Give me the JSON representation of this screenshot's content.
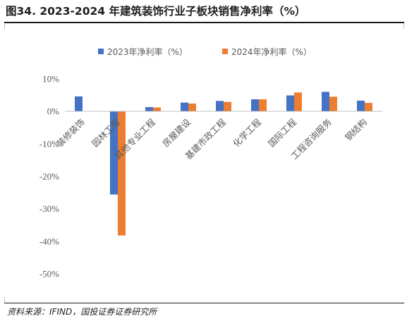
{
  "page": {
    "title": "图34. 2023-2024 年建筑装饰行业子板块销售净利率（%）",
    "source": "资料来源：IFIND，国投证券证券研究所"
  },
  "chart_data": {
    "type": "bar",
    "title": "图34. 2023-2024 年建筑装饰行业子板块销售净利率（%）",
    "categories": [
      "装修装饰",
      "园林工程",
      "其他专业工程",
      "房屋建设",
      "基建市政工程",
      "化学工程",
      "国际工程",
      "工程咨询服务",
      "钢结构"
    ],
    "series": [
      {
        "name": "2023年净利率（%）",
        "color": "#4472C4",
        "values": [
          4.6,
          -25.6,
          1.3,
          2.7,
          3.2,
          3.7,
          4.9,
          6.0,
          3.3
        ]
      },
      {
        "name": "2024年净利率（%）",
        "color": "#ED7D31",
        "values": [
          null,
          -38.2,
          1.2,
          2.4,
          2.9,
          3.7,
          5.8,
          4.5,
          2.6
        ]
      }
    ],
    "yticks": [
      10,
      0,
      -10,
      -20,
      -30,
      -40,
      -50
    ],
    "ytick_labels": [
      "10%",
      "0%",
      "-10%",
      "-20%",
      "-30%",
      "-40%",
      "-50%"
    ],
    "ylim": [
      -50,
      10
    ],
    "xlabel": "",
    "ylabel": "",
    "legend_position": "top-center",
    "grid": false
  }
}
